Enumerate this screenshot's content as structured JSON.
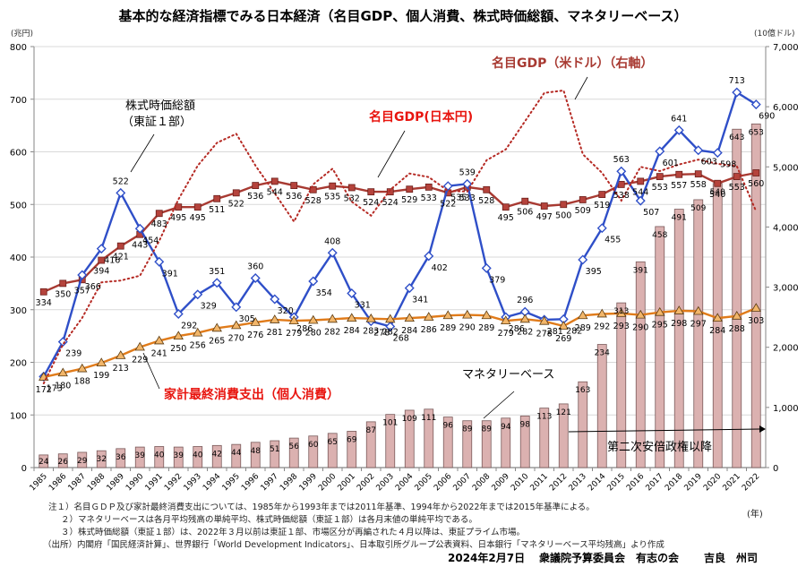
{
  "chart_data": {
    "type": "line",
    "title": "基本的な経済指標でみる日本経済（名目GDP、個人消費、株式時価総額、マネタリーベース）",
    "left_axis": {
      "unit_label": "(兆円)",
      "ylim": [
        0,
        800
      ],
      "ticks": [
        0,
        100,
        200,
        300,
        400,
        500,
        600,
        700,
        800
      ],
      "tick_labels": [
        "0",
        "100",
        "200",
        "300",
        "400",
        "500",
        "600",
        "700",
        "800"
      ]
    },
    "right_axis": {
      "unit_label": "(10億ドル)",
      "ylim": [
        0,
        7000
      ],
      "ticks": [
        0,
        1000,
        2000,
        3000,
        4000,
        5000,
        6000,
        7000
      ],
      "tick_labels": [
        "0",
        "1,000",
        "2,000",
        "3,000",
        "4,000",
        "5,000",
        "6,000",
        "7,000"
      ]
    },
    "x_unit_label": "(年)",
    "grid": true,
    "categories": [
      "1985",
      "1986",
      "1987",
      "1988",
      "1989",
      "1990",
      "1991",
      "1992",
      "1993",
      "1994",
      "1995",
      "1996",
      "1997",
      "1998",
      "1999",
      "2000",
      "2001",
      "2002",
      "2003",
      "2004",
      "2005",
      "2006",
      "2007",
      "2008",
      "2009",
      "2010",
      "2011",
      "2012",
      "2013",
      "2014",
      "2015",
      "2016",
      "2017",
      "2018",
      "2019",
      "2020",
      "2021",
      "2022"
    ],
    "series": [
      {
        "name": "マネタリーベース",
        "kind": "bar",
        "axis": "left",
        "color": "#dbb1b0",
        "values": [
          24,
          26,
          29,
          32,
          36,
          39,
          40,
          39,
          40,
          42,
          44,
          48,
          51,
          56,
          60,
          65,
          69,
          87,
          101,
          109,
          111,
          96,
          89,
          89,
          94,
          98,
          113,
          121,
          163,
          234,
          313,
          391,
          458,
          491,
          509,
          540,
          643,
          653
        ]
      },
      {
        "name": "名目GDP(日本円)",
        "kind": "line",
        "axis": "left",
        "color": "#a83a32",
        "marker": "square",
        "values": [
          334,
          350,
          357,
          394,
          421,
          443,
          483,
          495,
          495,
          511,
          522,
          536,
          544,
          536,
          528,
          535,
          532,
          524,
          524,
          529,
          533,
          522,
          533,
          528,
          495,
          506,
          497,
          500,
          509,
          519,
          538,
          544,
          553,
          557,
          558,
          540,
          553,
          560
        ]
      },
      {
        "name": "株式時価総額（東証1部）",
        "kind": "line",
        "axis": "left",
        "color": "#2f4fc8",
        "marker": "diamond",
        "values": [
          173,
          239,
          366,
          416,
          522,
          454,
          391,
          292,
          329,
          351,
          305,
          360,
          320,
          286,
          354,
          408,
          331,
          278,
          268,
          341,
          402,
          535,
          539,
          379,
          286,
          296,
          281,
          282,
          395,
          455,
          563,
          507,
          601,
          641,
          603,
          598,
          713,
          690
        ]
      },
      {
        "name": "家計最終消費支出（個人消費）",
        "kind": "line",
        "axis": "left",
        "color": "#e07b1a",
        "marker": "triangle",
        "values": [
          172,
          180,
          188,
          199,
          213,
          229,
          241,
          250,
          256,
          265,
          270,
          276,
          281,
          279,
          280,
          282,
          284,
          283,
          282,
          284,
          286,
          289,
          290,
          289,
          279,
          282,
          278,
          269,
          289,
          292,
          293,
          290,
          295,
          298,
          297,
          284,
          288,
          303
        ]
      },
      {
        "name": "名目GDP（米ドル）（右軸）",
        "kind": "dotted-line",
        "axis": "right",
        "color": "#b52a24",
        "values": [
          1400,
          2050,
          2490,
          3080,
          3110,
          3190,
          3770,
          4460,
          5020,
          5400,
          5550,
          5020,
          4560,
          4090,
          4710,
          4970,
          4420,
          4190,
          4620,
          4890,
          4830,
          4600,
          4590,
          5110,
          5290,
          5760,
          6230,
          6270,
          5210,
          4900,
          4440,
          5000,
          4930,
          5040,
          5120,
          5050,
          5010,
          4260
        ]
      }
    ],
    "annotations": {
      "stock_label_line1": "株式時価総額",
      "stock_label_line2": "（東証１部）",
      "gdp_yen_label": "名目GDP(日本円)",
      "gdp_usd_label": "名目GDP（米ドル）（右軸）",
      "consumption_label": "家計最終消費支出（個人消費）",
      "monetary_base_label": "マネタリーベース",
      "abe_label": "第二次安倍政権以降"
    }
  },
  "notes": [
    "注１）名目ＧＤＰ及び家計最終消費支出については、1985年から1993年までは2011年基準、1994年から2022年までは2015年基準による。",
    "２）マネタリーベースは各月平均残高の単純平均、株式時価総額（東証１部）は各月末値の単純平均である。",
    "３）株式時価総額（東証１部）は、2022年３月以前は東証１部、市場区分が再編された４月以降は、東証プライム市場。",
    "（出所）内閣府「国民経済計算」、世界銀行「World Development Indicators」、日本取引所グループ公表資料、日本銀行「マネタリーベース平均残高」より作成"
  ],
  "footer": {
    "date": "2024年2月7日",
    "committee": "衆議院予算委員会　有志の会",
    "author": "吉良　州司"
  }
}
